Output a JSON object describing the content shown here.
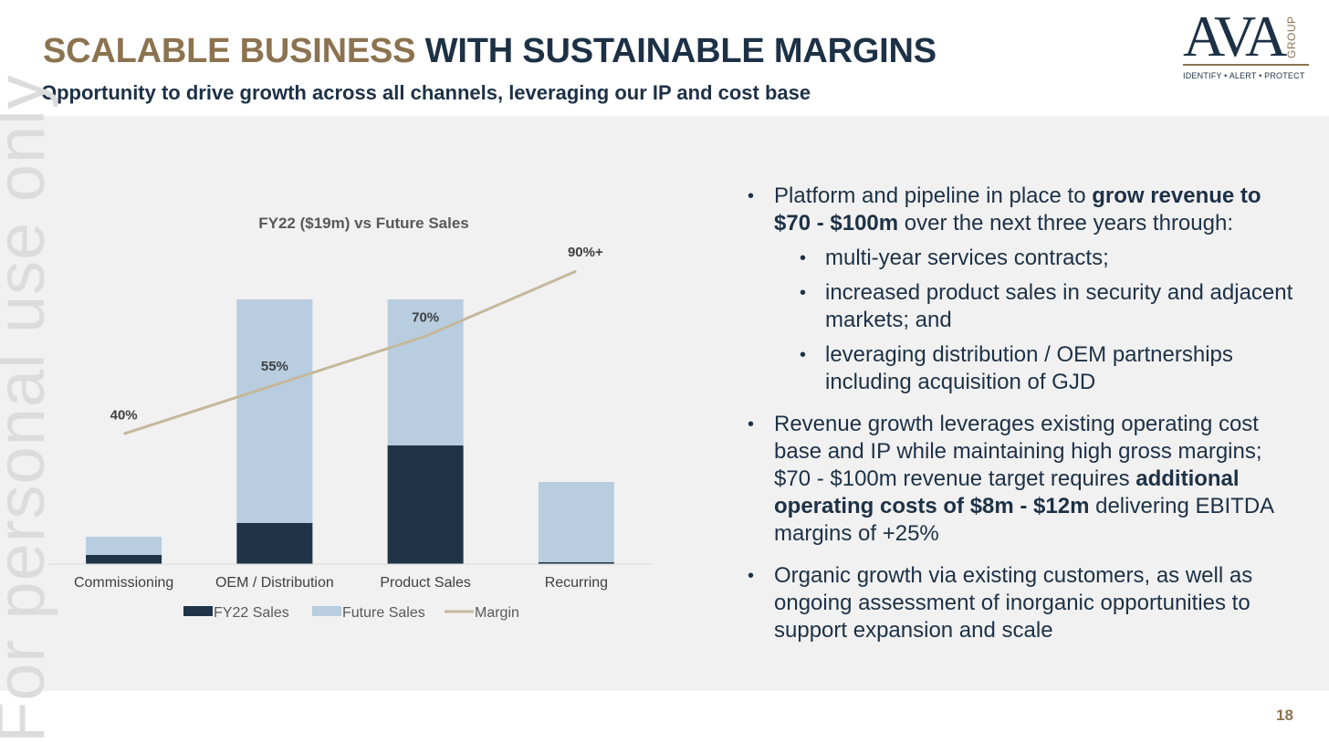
{
  "header": {
    "title_part1": "SCALABLE BUSINESS",
    "title_part2": "WITH SUSTAINABLE MARGINS",
    "subtitle": "Opportunity to drive growth across all channels, leveraging our IP and cost base"
  },
  "logo": {
    "main": "AVA",
    "side": "GROUP",
    "tagline": "IDENTIFY • ALERT • PROTECT"
  },
  "watermark": "For personal use only",
  "page_number": "18",
  "colors": {
    "gold": "#8c734f",
    "navy": "#1d3146",
    "fy22_bar": "#1f3447",
    "future_bar": "#b8cde0",
    "margin_line": "#c4b89c",
    "panel_bg": "#f1f1f1"
  },
  "chart_data": {
    "type": "bar",
    "stacked": true,
    "title": "FY22 ($19m) vs Future Sales",
    "categories": [
      "Commissioning",
      "OEM / Distribution",
      "Product Sales",
      "Recurring"
    ],
    "series": [
      {
        "name": "FY22 Sales",
        "values": [
          1.0,
          4.5,
          13.0,
          0.2
        ],
        "color": "#1f3447"
      },
      {
        "name": "Future Sales",
        "values": [
          2.0,
          24.5,
          16.0,
          8.8
        ],
        "color": "#b8cde0"
      }
    ],
    "line_series": {
      "name": "Margin",
      "values": [
        40,
        55,
        70,
        90
      ],
      "labels": [
        "40%",
        "55%",
        "70%",
        "90%+"
      ],
      "color": "#c4b89c"
    },
    "ylim": [
      0,
      30
    ],
    "line_ylim": [
      0,
      120
    ],
    "grid": false,
    "legend_position": "bottom"
  },
  "bullets": {
    "b1_pre": "Platform and pipeline in place to ",
    "b1_bold": "grow revenue to $70 - $100m",
    "b1_post": " over the next three years through:",
    "sub": [
      "multi-year services contracts;",
      "increased product sales in security and adjacent markets; and",
      "leveraging distribution / OEM partnerships including acquisition of GJD"
    ],
    "b2_pre": "Revenue growth leverages existing operating cost base and IP while maintaining high gross margins; $70 - $100m revenue target requires ",
    "b2_bold": "additional operating costs of $8m - $12m",
    "b2_post": " delivering EBITDA margins of +25%",
    "b3": "Organic growth via existing customers, as well as ongoing assessment of inorganic opportunities to support expansion and scale"
  }
}
